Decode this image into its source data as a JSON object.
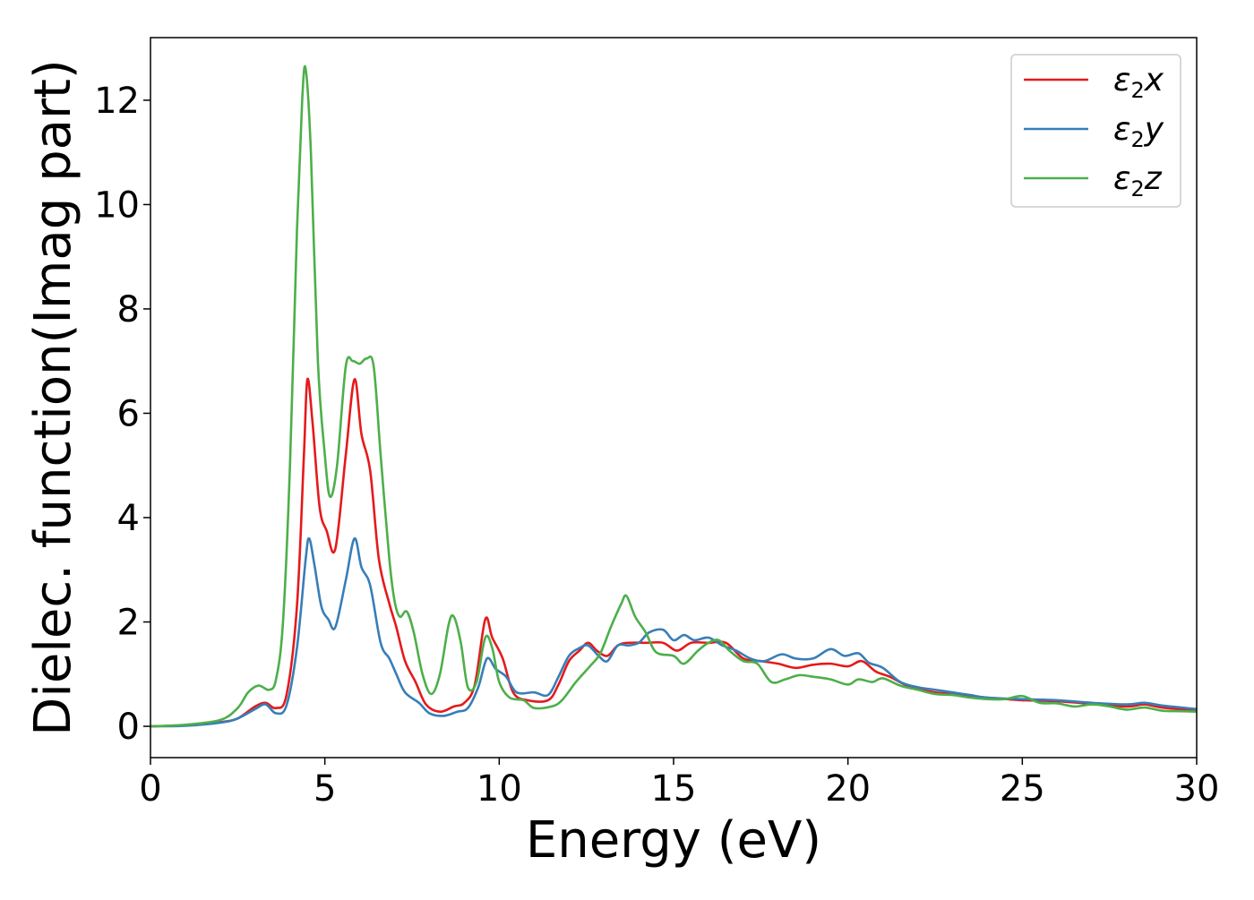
{
  "chart_data": {
    "type": "line",
    "title": "",
    "xlabel": "Energy (eV)",
    "ylabel": "Dielec. function(Imag part)",
    "xlim": [
      0,
      30
    ],
    "ylim": [
      -0.6,
      13.2
    ],
    "xticks": [
      0,
      5,
      10,
      15,
      20,
      25,
      30
    ],
    "yticks": [
      0,
      2,
      4,
      6,
      8,
      10,
      12
    ],
    "grid": false,
    "legend": {
      "placement": "top-right"
    },
    "series": [
      {
        "name": "ε₂x",
        "legend_base": "ε",
        "legend_sub": "2",
        "legend_suffix": "x",
        "color": "#e41a1c",
        "points": [
          [
            0,
            0
          ],
          [
            1,
            0.02
          ],
          [
            2,
            0.08
          ],
          [
            2.5,
            0.15
          ],
          [
            3,
            0.38
          ],
          [
            3.3,
            0.45
          ],
          [
            3.6,
            0.35
          ],
          [
            3.9,
            0.6
          ],
          [
            4.2,
            2.3
          ],
          [
            4.4,
            5.2
          ],
          [
            4.5,
            6.65
          ],
          [
            4.65,
            5.8
          ],
          [
            4.85,
            4.2
          ],
          [
            5.05,
            3.75
          ],
          [
            5.3,
            3.4
          ],
          [
            5.6,
            5.2
          ],
          [
            5.85,
            6.65
          ],
          [
            6.05,
            5.6
          ],
          [
            6.3,
            4.9
          ],
          [
            6.55,
            3.2
          ],
          [
            6.85,
            2.35
          ],
          [
            7.05,
            1.9
          ],
          [
            7.3,
            1.25
          ],
          [
            7.6,
            0.85
          ],
          [
            7.9,
            0.42
          ],
          [
            8.3,
            0.28
          ],
          [
            8.7,
            0.38
          ],
          [
            9.0,
            0.45
          ],
          [
            9.3,
            0.8
          ],
          [
            9.6,
            2.05
          ],
          [
            9.8,
            1.7
          ],
          [
            10.1,
            1.3
          ],
          [
            10.4,
            0.65
          ],
          [
            10.8,
            0.5
          ],
          [
            11.4,
            0.5
          ],
          [
            11.7,
            0.8
          ],
          [
            12.0,
            1.25
          ],
          [
            12.3,
            1.45
          ],
          [
            12.55,
            1.6
          ],
          [
            12.8,
            1.45
          ],
          [
            13.1,
            1.35
          ],
          [
            13.4,
            1.55
          ],
          [
            13.7,
            1.6
          ],
          [
            14.2,
            1.6
          ],
          [
            14.7,
            1.6
          ],
          [
            15.1,
            1.45
          ],
          [
            15.5,
            1.6
          ],
          [
            16.0,
            1.6
          ],
          [
            16.5,
            1.6
          ],
          [
            17.0,
            1.3
          ],
          [
            17.5,
            1.25
          ],
          [
            18.0,
            1.2
          ],
          [
            18.5,
            1.12
          ],
          [
            19.0,
            1.18
          ],
          [
            19.5,
            1.2
          ],
          [
            20.0,
            1.15
          ],
          [
            20.4,
            1.25
          ],
          [
            20.8,
            1.05
          ],
          [
            21.2,
            0.95
          ],
          [
            21.8,
            0.75
          ],
          [
            22.5,
            0.65
          ],
          [
            23.0,
            0.62
          ],
          [
            23.5,
            0.58
          ],
          [
            24.0,
            0.55
          ],
          [
            25.0,
            0.5
          ],
          [
            26.0,
            0.48
          ],
          [
            27.0,
            0.43
          ],
          [
            28.0,
            0.38
          ],
          [
            28.5,
            0.42
          ],
          [
            29.0,
            0.36
          ],
          [
            30.0,
            0.3
          ]
        ]
      },
      {
        "name": "ε₂y",
        "legend_base": "ε",
        "legend_sub": "2",
        "legend_suffix": "y",
        "color": "#377eb8",
        "points": [
          [
            0,
            0
          ],
          [
            1,
            0.01
          ],
          [
            2,
            0.07
          ],
          [
            2.5,
            0.15
          ],
          [
            3,
            0.33
          ],
          [
            3.3,
            0.42
          ],
          [
            3.6,
            0.25
          ],
          [
            3.9,
            0.4
          ],
          [
            4.2,
            1.5
          ],
          [
            4.45,
            3.2
          ],
          [
            4.55,
            3.6
          ],
          [
            4.7,
            3.1
          ],
          [
            4.9,
            2.3
          ],
          [
            5.1,
            2.05
          ],
          [
            5.3,
            1.9
          ],
          [
            5.6,
            2.8
          ],
          [
            5.85,
            3.6
          ],
          [
            6.05,
            3.05
          ],
          [
            6.3,
            2.7
          ],
          [
            6.6,
            1.6
          ],
          [
            6.85,
            1.3
          ],
          [
            7.05,
            1.0
          ],
          [
            7.3,
            0.65
          ],
          [
            7.7,
            0.45
          ],
          [
            8.0,
            0.25
          ],
          [
            8.4,
            0.2
          ],
          [
            8.8,
            0.28
          ],
          [
            9.1,
            0.35
          ],
          [
            9.4,
            0.75
          ],
          [
            9.65,
            1.3
          ],
          [
            9.9,
            1.1
          ],
          [
            10.2,
            0.95
          ],
          [
            10.5,
            0.65
          ],
          [
            11.0,
            0.65
          ],
          [
            11.4,
            0.6
          ],
          [
            11.7,
            0.95
          ],
          [
            12.0,
            1.35
          ],
          [
            12.3,
            1.5
          ],
          [
            12.55,
            1.55
          ],
          [
            12.85,
            1.35
          ],
          [
            13.1,
            1.25
          ],
          [
            13.4,
            1.55
          ],
          [
            13.7,
            1.55
          ],
          [
            14.0,
            1.6
          ],
          [
            14.3,
            1.8
          ],
          [
            14.7,
            1.85
          ],
          [
            15.0,
            1.65
          ],
          [
            15.3,
            1.75
          ],
          [
            15.6,
            1.65
          ],
          [
            16.0,
            1.7
          ],
          [
            16.4,
            1.55
          ],
          [
            16.8,
            1.45
          ],
          [
            17.2,
            1.3
          ],
          [
            17.6,
            1.25
          ],
          [
            18.1,
            1.38
          ],
          [
            18.5,
            1.3
          ],
          [
            19.0,
            1.3
          ],
          [
            19.5,
            1.48
          ],
          [
            19.9,
            1.35
          ],
          [
            20.3,
            1.4
          ],
          [
            20.6,
            1.22
          ],
          [
            21.0,
            1.12
          ],
          [
            21.5,
            0.85
          ],
          [
            22.0,
            0.75
          ],
          [
            22.5,
            0.7
          ],
          [
            23.0,
            0.65
          ],
          [
            23.5,
            0.6
          ],
          [
            24.0,
            0.55
          ],
          [
            25.0,
            0.52
          ],
          [
            26.0,
            0.5
          ],
          [
            27.0,
            0.45
          ],
          [
            28.0,
            0.42
          ],
          [
            28.5,
            0.45
          ],
          [
            29.0,
            0.4
          ],
          [
            30.0,
            0.33
          ]
        ]
      },
      {
        "name": "ε₂z",
        "legend_base": "ε",
        "legend_sub": "2",
        "legend_suffix": "z",
        "color": "#4daf4a",
        "points": [
          [
            0,
            0
          ],
          [
            1,
            0.03
          ],
          [
            2,
            0.12
          ],
          [
            2.5,
            0.35
          ],
          [
            2.8,
            0.65
          ],
          [
            3.1,
            0.78
          ],
          [
            3.4,
            0.7
          ],
          [
            3.6,
            0.9
          ],
          [
            3.8,
            2.0
          ],
          [
            4.0,
            5.0
          ],
          [
            4.2,
            9.5
          ],
          [
            4.35,
            12.0
          ],
          [
            4.45,
            12.6
          ],
          [
            4.6,
            11.0
          ],
          [
            4.8,
            7.0
          ],
          [
            5.0,
            5.2
          ],
          [
            5.15,
            4.4
          ],
          [
            5.35,
            5.0
          ],
          [
            5.6,
            6.9
          ],
          [
            5.8,
            7.0
          ],
          [
            6.0,
            6.95
          ],
          [
            6.2,
            7.05
          ],
          [
            6.4,
            6.9
          ],
          [
            6.6,
            5.2
          ],
          [
            6.85,
            3.2
          ],
          [
            7.0,
            2.4
          ],
          [
            7.15,
            2.1
          ],
          [
            7.35,
            2.2
          ],
          [
            7.55,
            1.8
          ],
          [
            7.8,
            1.0
          ],
          [
            8.05,
            0.62
          ],
          [
            8.3,
            1.0
          ],
          [
            8.55,
            1.95
          ],
          [
            8.7,
            2.1
          ],
          [
            8.9,
            1.6
          ],
          [
            9.1,
            0.75
          ],
          [
            9.35,
            0.85
          ],
          [
            9.6,
            1.7
          ],
          [
            9.8,
            1.5
          ],
          [
            10.0,
            0.85
          ],
          [
            10.3,
            0.55
          ],
          [
            10.7,
            0.5
          ],
          [
            11.0,
            0.35
          ],
          [
            11.5,
            0.38
          ],
          [
            11.8,
            0.5
          ],
          [
            12.2,
            0.85
          ],
          [
            12.6,
            1.15
          ],
          [
            12.9,
            1.4
          ],
          [
            13.2,
            1.9
          ],
          [
            13.5,
            2.35
          ],
          [
            13.65,
            2.5
          ],
          [
            13.9,
            2.1
          ],
          [
            14.2,
            1.8
          ],
          [
            14.5,
            1.42
          ],
          [
            15.0,
            1.35
          ],
          [
            15.3,
            1.2
          ],
          [
            15.7,
            1.45
          ],
          [
            16.0,
            1.6
          ],
          [
            16.3,
            1.65
          ],
          [
            16.6,
            1.45
          ],
          [
            17.0,
            1.25
          ],
          [
            17.4,
            1.2
          ],
          [
            17.8,
            0.85
          ],
          [
            18.2,
            0.9
          ],
          [
            18.6,
            0.98
          ],
          [
            19.0,
            0.95
          ],
          [
            19.5,
            0.9
          ],
          [
            20.0,
            0.8
          ],
          [
            20.3,
            0.9
          ],
          [
            20.7,
            0.85
          ],
          [
            21.0,
            0.92
          ],
          [
            21.5,
            0.78
          ],
          [
            22.0,
            0.7
          ],
          [
            22.5,
            0.62
          ],
          [
            23.0,
            0.6
          ],
          [
            23.5,
            0.55
          ],
          [
            24.0,
            0.52
          ],
          [
            24.5,
            0.52
          ],
          [
            25.0,
            0.58
          ],
          [
            25.5,
            0.45
          ],
          [
            26.0,
            0.44
          ],
          [
            26.5,
            0.38
          ],
          [
            27.0,
            0.42
          ],
          [
            27.5,
            0.38
          ],
          [
            28.0,
            0.32
          ],
          [
            28.5,
            0.36
          ],
          [
            29.0,
            0.3
          ],
          [
            29.5,
            0.29
          ],
          [
            30.0,
            0.28
          ]
        ]
      }
    ]
  }
}
